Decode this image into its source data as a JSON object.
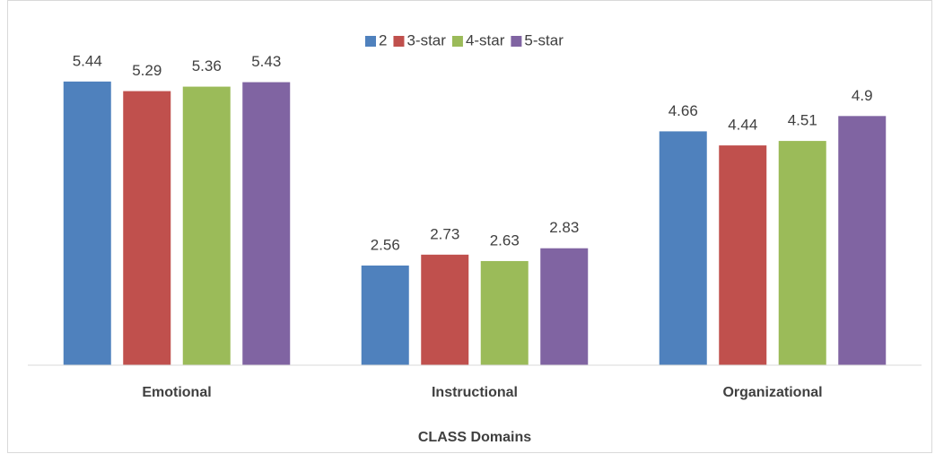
{
  "chart_data": {
    "type": "bar",
    "xlabel": "CLASS Domains",
    "categories": [
      "Emotional",
      "Instructional",
      "Organizational"
    ],
    "series": [
      {
        "name": "2",
        "color": "#4f81bd",
        "values": [
          5.44,
          2.56,
          4.66
        ]
      },
      {
        "name": "3-star",
        "color": "#c0504d",
        "values": [
          5.29,
          2.73,
          4.44
        ]
      },
      {
        "name": "4-star",
        "color": "#9bbb59",
        "values": [
          5.36,
          2.63,
          4.51
        ]
      },
      {
        "name": "5-star",
        "color": "#8064a2",
        "values": [
          5.43,
          2.83,
          4.9
        ]
      }
    ],
    "ylim": [
      1,
      6
    ],
    "legend": "top"
  }
}
